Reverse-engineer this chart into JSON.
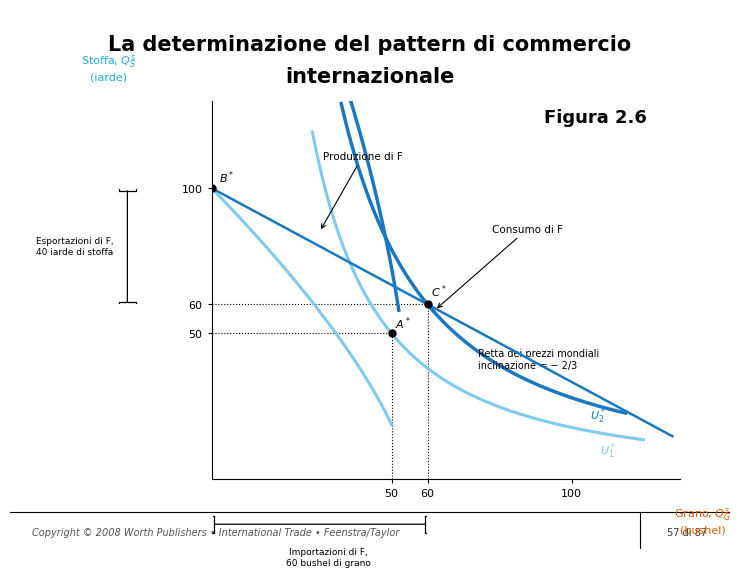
{
  "title_line1": "La determinazione del pattern di commercio",
  "title_line2": "internazionale",
  "title_bg": "#4472c4",
  "title_color": "#000000",
  "figura_label": "Figura 2.6",
  "ylabel_color": "#29abe2",
  "xlabel_color": "#e05a00",
  "xlim": [
    0,
    130
  ],
  "ylim": [
    0,
    130
  ],
  "xticks": [
    50,
    60,
    100
  ],
  "yticks": [
    50,
    60,
    100
  ],
  "point_B": [
    0,
    100
  ],
  "point_A": [
    50,
    50
  ],
  "point_C": [
    60,
    60
  ],
  "color_light": "#7ecbee",
  "color_dark": "#1a78c2",
  "footer_text": "Copyright © 2008 Worth Publishers • International Trade • Feenstra/Taylor",
  "page_text": "57 di 87",
  "annot_produzione": "Produzione di F",
  "annot_consumo": "Consumo di F",
  "annot_esport": "Esportazioni di F,\n40 iarde di stoffa",
  "annot_import": "Importazioni di F,\n60 bushel di grano",
  "annot_retta": "Retta dei prezzi mondiali\ninclinazione = − 2/3",
  "annot_U2": "$U_2^*$",
  "annot_U1": "$U_1^*$"
}
